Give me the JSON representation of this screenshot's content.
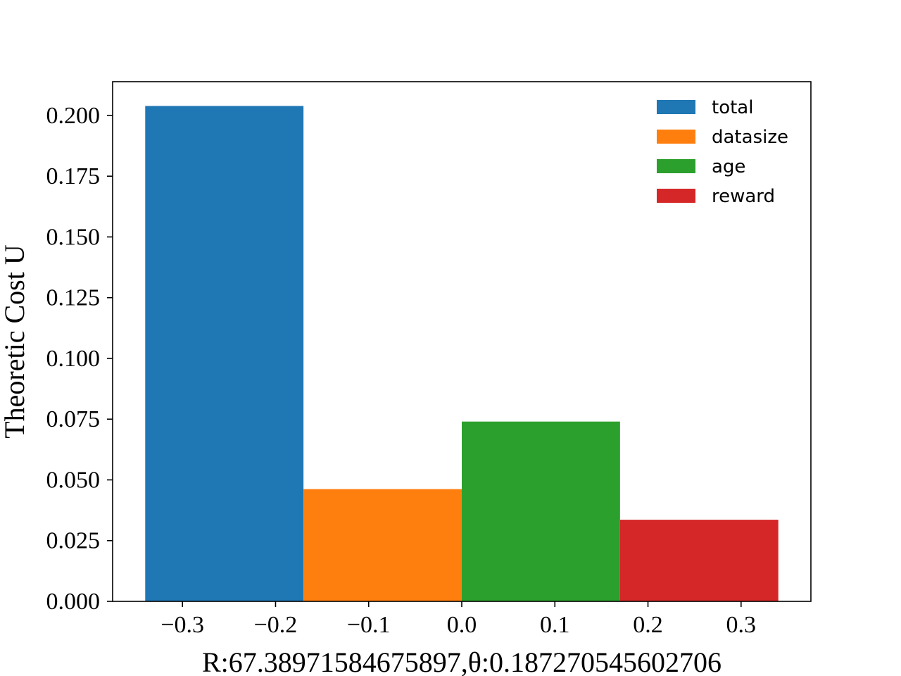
{
  "chart_data": {
    "type": "bar",
    "xlabel": "R:67.38971584675897,θ:0.187270545602706",
    "ylabel": "Theoretic Cost U",
    "xlim": [
      -0.375,
      0.375
    ],
    "ylim": [
      0,
      0.2139
    ],
    "xticks": [
      -0.3,
      -0.2,
      -0.1,
      0.0,
      0.1,
      0.2,
      0.3
    ],
    "xtick_labels": [
      "−0.3",
      "−0.2",
      "−0.1",
      "0.0",
      "0.1",
      "0.2",
      "0.3"
    ],
    "yticks": [
      0,
      0.025,
      0.05,
      0.075,
      0.1,
      0.125,
      0.15,
      0.175,
      0.2
    ],
    "ytick_labels": [
      "0.000",
      "0.025",
      "0.050",
      "0.075",
      "0.100",
      "0.125",
      "0.150",
      "0.175",
      "0.200"
    ],
    "bar_width": 0.17,
    "legend_position": "top-right",
    "grid": false,
    "series": [
      {
        "name": "total",
        "x": -0.255,
        "value": 0.2039,
        "color": "#1f77b4"
      },
      {
        "name": "datasize",
        "x": -0.085,
        "value": 0.0462,
        "color": "#ff7f0e"
      },
      {
        "name": "age",
        "x": 0.085,
        "value": 0.074,
        "color": "#2ca02c"
      },
      {
        "name": "reward",
        "x": 0.255,
        "value": 0.0336,
        "color": "#d62728"
      }
    ]
  }
}
